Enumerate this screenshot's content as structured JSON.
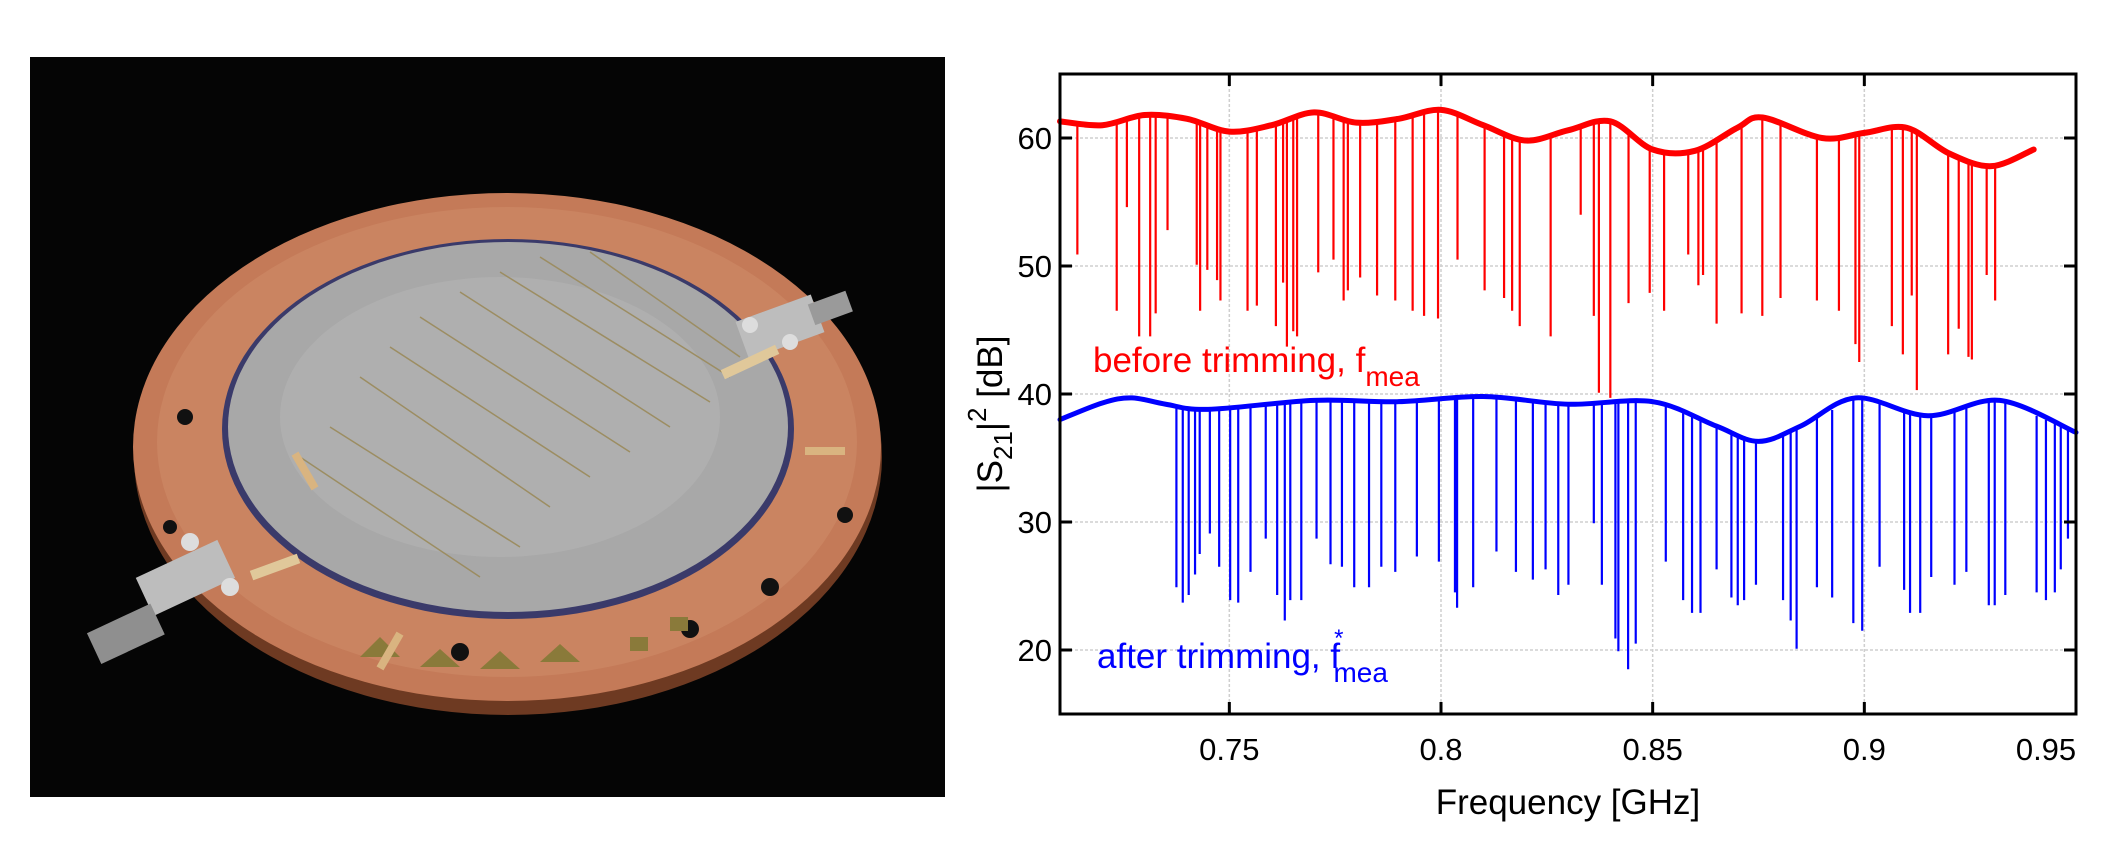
{
  "photo": {
    "alt_subject": "copper sample holder with wafer and two SMA connectors"
  },
  "chart_data": {
    "type": "line",
    "title": "",
    "xlabel": "Frequency [GHz]",
    "ylabel": {
      "base": "|S",
      "sub": "21",
      "mid": "|",
      "sup": "2",
      "unit": " [dB]"
    },
    "xlim": [
      0.71,
      0.95
    ],
    "ylim": [
      15,
      65
    ],
    "xticks": [
      0.75,
      0.8,
      0.85,
      0.9,
      0.95
    ],
    "xtick_labels": [
      "0.75",
      "0.8",
      "0.85",
      "0.9",
      "0.95"
    ],
    "yticks": [
      20,
      30,
      40,
      50,
      60
    ],
    "ytick_labels": [
      "20",
      "30",
      "40",
      "50",
      "60"
    ],
    "grid": true,
    "series": [
      {
        "name": "before trimming, f_mea",
        "label": {
          "text": "before trimming, f",
          "sub": "mea",
          "sup": ""
        },
        "color": "#ff0000",
        "baseline": [
          [
            0.71,
            61.3
          ],
          [
            0.72,
            61.0
          ],
          [
            0.73,
            61.8
          ],
          [
            0.74,
            61.5
          ],
          [
            0.75,
            60.5
          ],
          [
            0.76,
            61.0
          ],
          [
            0.77,
            62.0
          ],
          [
            0.78,
            61.2
          ],
          [
            0.79,
            61.5
          ],
          [
            0.8,
            62.2
          ],
          [
            0.81,
            61.0
          ],
          [
            0.82,
            59.8
          ],
          [
            0.83,
            60.6
          ],
          [
            0.84,
            61.3
          ],
          [
            0.85,
            59.1
          ],
          [
            0.86,
            59.0
          ],
          [
            0.87,
            60.8
          ],
          [
            0.876,
            61.6
          ],
          [
            0.89,
            60.0
          ],
          [
            0.9,
            60.4
          ],
          [
            0.91,
            60.8
          ],
          [
            0.92,
            58.8
          ],
          [
            0.93,
            57.8
          ],
          [
            0.94,
            59.1
          ]
        ],
        "dips": [
          [
            0.7141,
            50.9
          ],
          [
            0.7234,
            46.5
          ],
          [
            0.7258,
            54.6
          ],
          [
            0.7287,
            44.5
          ],
          [
            0.7313,
            44.5
          ],
          [
            0.7326,
            46.3
          ],
          [
            0.7354,
            52.8
          ],
          [
            0.7423,
            50.1
          ],
          [
            0.7431,
            46.5
          ],
          [
            0.7448,
            49.7
          ],
          [
            0.7471,
            48.9
          ],
          [
            0.7479,
            47.3
          ],
          [
            0.7543,
            46.5
          ],
          [
            0.7565,
            46.9
          ],
          [
            0.761,
            45.3
          ],
          [
            0.7627,
            48.7
          ],
          [
            0.7636,
            43.7
          ],
          [
            0.7651,
            44.9
          ],
          [
            0.766,
            44.5
          ],
          [
            0.771,
            49.5
          ],
          [
            0.7746,
            50.5
          ],
          [
            0.777,
            47.3
          ],
          [
            0.778,
            48.1
          ],
          [
            0.7809,
            49.1
          ],
          [
            0.7849,
            47.7
          ],
          [
            0.7892,
            47.3
          ],
          [
            0.7933,
            46.5
          ],
          [
            0.796,
            46.1
          ],
          [
            0.7993,
            45.9
          ],
          [
            0.8039,
            50.5
          ],
          [
            0.8103,
            48.1
          ],
          [
            0.8149,
            47.5
          ],
          [
            0.8168,
            46.5
          ],
          [
            0.8186,
            45.3
          ],
          [
            0.8259,
            44.5
          ],
          [
            0.833,
            54.0
          ],
          [
            0.8361,
            46.1
          ],
          [
            0.8373,
            40.1
          ],
          [
            0.84,
            39.7
          ],
          [
            0.8443,
            47.1
          ],
          [
            0.8493,
            47.9
          ],
          [
            0.8527,
            46.5
          ],
          [
            0.8584,
            50.9
          ],
          [
            0.8608,
            48.5
          ],
          [
            0.8619,
            49.3
          ],
          [
            0.8651,
            45.5
          ],
          [
            0.871,
            46.3
          ],
          [
            0.8759,
            46.1
          ],
          [
            0.8802,
            47.5
          ],
          [
            0.8888,
            47.3
          ],
          [
            0.894,
            46.5
          ],
          [
            0.8979,
            43.9
          ],
          [
            0.8988,
            42.5
          ],
          [
            0.9065,
            45.3
          ],
          [
            0.9091,
            43.1
          ],
          [
            0.9112,
            47.7
          ],
          [
            0.9124,
            40.3
          ],
          [
            0.9198,
            43.1
          ],
          [
            0.9223,
            45.1
          ],
          [
            0.9246,
            42.9
          ],
          [
            0.9254,
            42.7
          ],
          [
            0.9289,
            49.3
          ],
          [
            0.9309,
            47.3
          ]
        ]
      },
      {
        "name": "after trimming, f*_mea",
        "label": {
          "text": "after trimming, f",
          "sub": "mea",
          "sup": "*"
        },
        "color": "#0000ff",
        "baseline": [
          [
            0.71,
            38.0
          ],
          [
            0.72,
            39.3
          ],
          [
            0.727,
            39.7
          ],
          [
            0.735,
            39.2
          ],
          [
            0.745,
            38.8
          ],
          [
            0.77,
            39.5
          ],
          [
            0.79,
            39.4
          ],
          [
            0.81,
            39.8
          ],
          [
            0.83,
            39.2
          ],
          [
            0.85,
            39.4
          ],
          [
            0.865,
            37.5
          ],
          [
            0.875,
            36.3
          ],
          [
            0.885,
            37.5
          ],
          [
            0.898,
            39.7
          ],
          [
            0.915,
            38.3
          ],
          [
            0.932,
            39.5
          ],
          [
            0.95,
            37.0
          ]
        ],
        "dips": [
          [
            0.7375,
            24.9
          ],
          [
            0.739,
            23.7
          ],
          [
            0.7404,
            24.3
          ],
          [
            0.7419,
            25.9
          ],
          [
            0.743,
            27.5
          ],
          [
            0.7454,
            29.1
          ],
          [
            0.7476,
            26.5
          ],
          [
            0.7502,
            23.9
          ],
          [
            0.7521,
            23.7
          ],
          [
            0.755,
            26.1
          ],
          [
            0.7586,
            28.7
          ],
          [
            0.7613,
            24.3
          ],
          [
            0.7631,
            22.3
          ],
          [
            0.7644,
            23.9
          ],
          [
            0.767,
            23.9
          ],
          [
            0.7706,
            28.7
          ],
          [
            0.7739,
            26.7
          ],
          [
            0.7766,
            26.5
          ],
          [
            0.7795,
            24.9
          ],
          [
            0.783,
            24.9
          ],
          [
            0.7859,
            26.5
          ],
          [
            0.7892,
            26.1
          ],
          [
            0.7943,
            27.3
          ],
          [
            0.7995,
            26.9
          ],
          [
            0.8033,
            24.5
          ],
          [
            0.8038,
            23.3
          ],
          [
            0.8076,
            24.9
          ],
          [
            0.8131,
            27.7
          ],
          [
            0.8177,
            26.1
          ],
          [
            0.8217,
            25.5
          ],
          [
            0.8247,
            26.3
          ],
          [
            0.8277,
            24.3
          ],
          [
            0.8301,
            25.1
          ],
          [
            0.8361,
            29.9
          ],
          [
            0.838,
            25.1
          ],
          [
            0.8412,
            20.9
          ],
          [
            0.8419,
            19.9
          ],
          [
            0.8442,
            18.5
          ],
          [
            0.846,
            20.5
          ],
          [
            0.8531,
            26.9
          ],
          [
            0.8572,
            23.9
          ],
          [
            0.8593,
            22.9
          ],
          [
            0.8613,
            22.9
          ],
          [
            0.8651,
            26.3
          ],
          [
            0.8686,
            24.1
          ],
          [
            0.8701,
            23.5
          ],
          [
            0.8716,
            23.9
          ],
          [
            0.8744,
            25.1
          ],
          [
            0.8808,
            23.9
          ],
          [
            0.8826,
            22.3
          ],
          [
            0.884,
            20.1
          ],
          [
            0.8888,
            24.9
          ],
          [
            0.8924,
            24.1
          ],
          [
            0.8974,
            22.1
          ],
          [
            0.8995,
            21.5
          ],
          [
            0.9036,
            26.5
          ],
          [
            0.9094,
            24.7
          ],
          [
            0.9108,
            22.9
          ],
          [
            0.9132,
            22.9
          ],
          [
            0.9158,
            25.7
          ],
          [
            0.9213,
            25.1
          ],
          [
            0.9241,
            26.1
          ],
          [
            0.9294,
            23.5
          ],
          [
            0.9308,
            23.5
          ],
          [
            0.9333,
            24.3
          ],
          [
            0.9407,
            24.5
          ],
          [
            0.9429,
            23.9
          ],
          [
            0.945,
            24.5
          ],
          [
            0.9464,
            26.3
          ],
          [
            0.9481,
            28.7
          ]
        ]
      }
    ]
  }
}
